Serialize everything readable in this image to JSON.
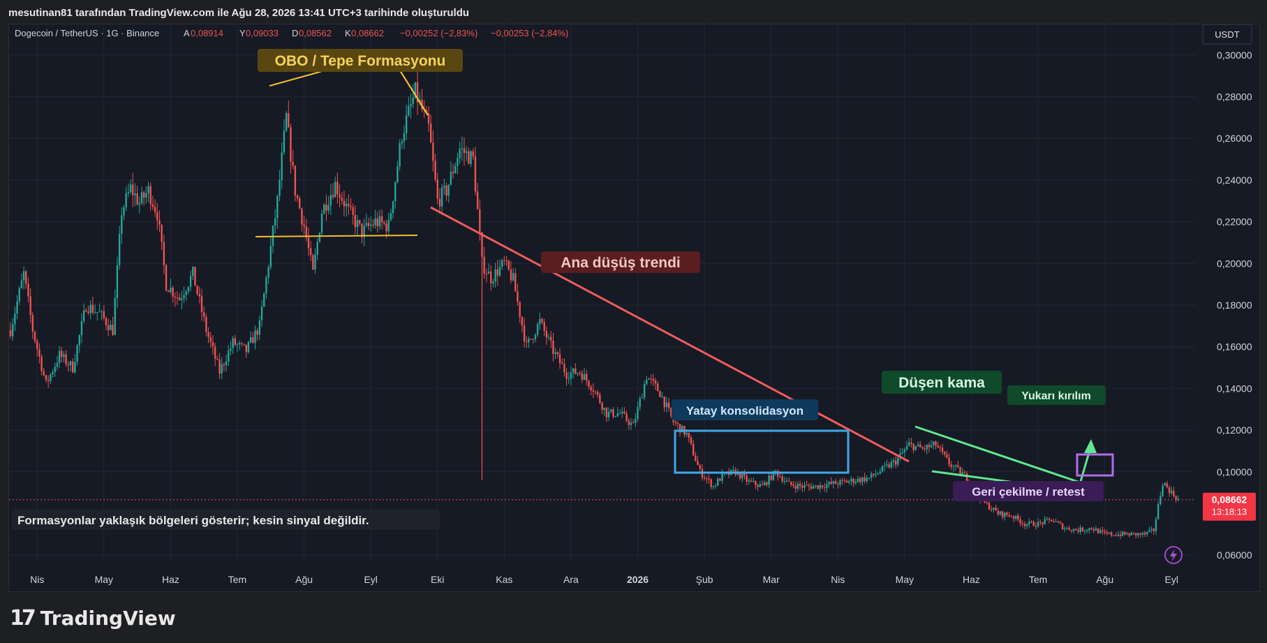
{
  "header": {
    "created_by": "mesutinan81 tarafından TradingView.com ile Ağu 28, 2026 13:41 UTC+3 tarihinde oluşturuldu"
  },
  "legend": {
    "symbol": "Dogecoin / TetherUS · 1G · Binance",
    "o_label": "A",
    "o_value": "0,08914",
    "h_label": "Y",
    "h_value": "0,09033",
    "l_label": "D",
    "l_value": "0,08562",
    "c_label": "K",
    "c_value": "0,08662",
    "change": "−0,00252 (−2,83%)",
    "change2": "−0,00253 (−2,84%)"
  },
  "currency_button": "USDT",
  "price_label": {
    "value": "0,08662",
    "countdown": "13:18:13"
  },
  "annotations": {
    "obo": "OBO / Tepe Formasyonu",
    "main_trend": "Ana düşüş trendi",
    "consolidation": "Yatay konsolidasyon",
    "falling_wedge": "Düşen kama",
    "breakout": "Yukarı kırılım",
    "retest": "Geri çekilme / retest",
    "disclaimer": "Formasyonlar yaklaşık bölgeleri gösterir; kesin sinyal değildir."
  },
  "footer": {
    "brand": "TradingView"
  },
  "colors": {
    "up": "#26a69a",
    "down": "#ef5350",
    "bg": "#161a25",
    "grid": "#232734",
    "trend": "#f05c5c",
    "neckline": "#f2c12e",
    "wedge": "#5ee88f",
    "box_blue": "#3fa8e8",
    "box_purple": "#b06ee6"
  },
  "chart_data": {
    "type": "candlestick",
    "title": "Dogecoin / TetherUS · 1G · Binance",
    "ylim": [
      0.05,
      0.31
    ],
    "y_ticks": [
      "0,30000",
      "0,28000",
      "0,26000",
      "0,24000",
      "0,22000",
      "0,20000",
      "0,18000",
      "0,16000",
      "0,14000",
      "0,12000",
      "0,10000",
      "0,06000"
    ],
    "y_tick_values": [
      0.3,
      0.28,
      0.26,
      0.24,
      0.22,
      0.2,
      0.18,
      0.16,
      0.14,
      0.12,
      0.1,
      0.06
    ],
    "x_ticks": [
      "Nis",
      "May",
      "Haz",
      "Tem",
      "Ağu",
      "Eyl",
      "Eki",
      "Kas",
      "Ara",
      "2026",
      "Şub",
      "Mar",
      "Nis",
      "May",
      "Haz",
      "Tem",
      "Ağu",
      "Eyl"
    ],
    "x_tick_index": [
      12,
      42,
      72,
      102,
      132,
      162,
      192,
      222,
      252,
      282,
      312,
      342,
      372,
      402,
      432,
      462,
      492,
      522
    ],
    "last_close": 0.08662,
    "close_path": [
      [
        0,
        0.168
      ],
      [
        6,
        0.195
      ],
      [
        10,
        0.168
      ],
      [
        16,
        0.142
      ],
      [
        22,
        0.156
      ],
      [
        28,
        0.15
      ],
      [
        34,
        0.18
      ],
      [
        40,
        0.176
      ],
      [
        46,
        0.168
      ],
      [
        50,
        0.225
      ],
      [
        54,
        0.236
      ],
      [
        58,
        0.229
      ],
      [
        62,
        0.235
      ],
      [
        66,
        0.224
      ],
      [
        70,
        0.19
      ],
      [
        76,
        0.183
      ],
      [
        82,
        0.195
      ],
      [
        88,
        0.168
      ],
      [
        94,
        0.148
      ],
      [
        100,
        0.162
      ],
      [
        106,
        0.158
      ],
      [
        112,
        0.17
      ],
      [
        116,
        0.2
      ],
      [
        120,
        0.23
      ],
      [
        124,
        0.27
      ],
      [
        128,
        0.235
      ],
      [
        132,
        0.218
      ],
      [
        136,
        0.195
      ],
      [
        140,
        0.225
      ],
      [
        146,
        0.238
      ],
      [
        152,
        0.225
      ],
      [
        158,
        0.215
      ],
      [
        164,
        0.22
      ],
      [
        170,
        0.218
      ],
      [
        176,
        0.262
      ],
      [
        182,
        0.282
      ],
      [
        188,
        0.265
      ],
      [
        192,
        0.23
      ],
      [
        196,
        0.235
      ],
      [
        202,
        0.255
      ],
      [
        208,
        0.25
      ],
      [
        212,
        0.2
      ],
      [
        216,
        0.193
      ],
      [
        222,
        0.2
      ],
      [
        226,
        0.192
      ],
      [
        232,
        0.16
      ],
      [
        238,
        0.172
      ],
      [
        244,
        0.158
      ],
      [
        250,
        0.147
      ],
      [
        256,
        0.148
      ],
      [
        262,
        0.14
      ],
      [
        268,
        0.128
      ],
      [
        274,
        0.128
      ],
      [
        280,
        0.122
      ],
      [
        286,
        0.146
      ],
      [
        292,
        0.138
      ],
      [
        298,
        0.124
      ],
      [
        304,
        0.118
      ],
      [
        310,
        0.1
      ],
      [
        316,
        0.093
      ],
      [
        320,
        0.098
      ],
      [
        326,
        0.1
      ],
      [
        332,
        0.095
      ],
      [
        338,
        0.093
      ],
      [
        344,
        0.1
      ],
      [
        350,
        0.094
      ],
      [
        356,
        0.093
      ],
      [
        362,
        0.093
      ],
      [
        368,
        0.094
      ],
      [
        374,
        0.095
      ],
      [
        380,
        0.096
      ],
      [
        386,
        0.097
      ],
      [
        392,
        0.101
      ],
      [
        398,
        0.105
      ],
      [
        404,
        0.113
      ],
      [
        410,
        0.111
      ],
      [
        416,
        0.113
      ],
      [
        422,
        0.104
      ],
      [
        428,
        0.099
      ],
      [
        432,
        0.095
      ],
      [
        438,
        0.085
      ],
      [
        444,
        0.08
      ],
      [
        450,
        0.079
      ],
      [
        456,
        0.075
      ],
      [
        462,
        0.075
      ],
      [
        468,
        0.077
      ],
      [
        474,
        0.073
      ],
      [
        480,
        0.072
      ],
      [
        486,
        0.073
      ],
      [
        492,
        0.07
      ],
      [
        498,
        0.07
      ],
      [
        504,
        0.07
      ],
      [
        510,
        0.07
      ],
      [
        514,
        0.072
      ],
      [
        518,
        0.095
      ],
      [
        522,
        0.09
      ],
      [
        525,
        0.0866
      ]
    ]
  }
}
